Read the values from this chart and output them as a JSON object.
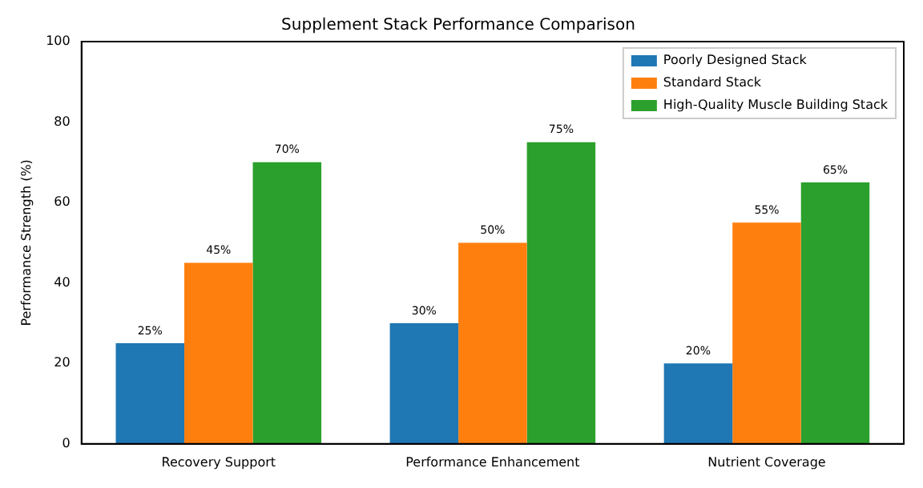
{
  "chart_data": {
    "type": "bar",
    "title": "Supplement Stack Performance Comparison",
    "ylabel": "Performance Strength (%)",
    "categories": [
      "Recovery Support",
      "Performance Enhancement",
      "Nutrient Coverage"
    ],
    "series": [
      {
        "name": "Poorly Designed Stack",
        "color": "#1f77b4",
        "values": [
          25,
          30,
          20
        ],
        "value_labels": [
          "25%",
          "30%",
          "20%"
        ]
      },
      {
        "name": "Standard Stack",
        "color": "#ff7f0e",
        "values": [
          45,
          50,
          55
        ],
        "value_labels": [
          "45%",
          "50%",
          "55%"
        ]
      },
      {
        "name": "High-Quality Muscle Building Stack",
        "color": "#2ca02c",
        "values": [
          70,
          75,
          65
        ],
        "value_labels": [
          "70%",
          "75%",
          "65%"
        ]
      }
    ],
    "ylim": [
      0,
      100
    ],
    "yticks": [
      0,
      20,
      40,
      60,
      80,
      100
    ],
    "grid": false,
    "legend": "top right"
  }
}
